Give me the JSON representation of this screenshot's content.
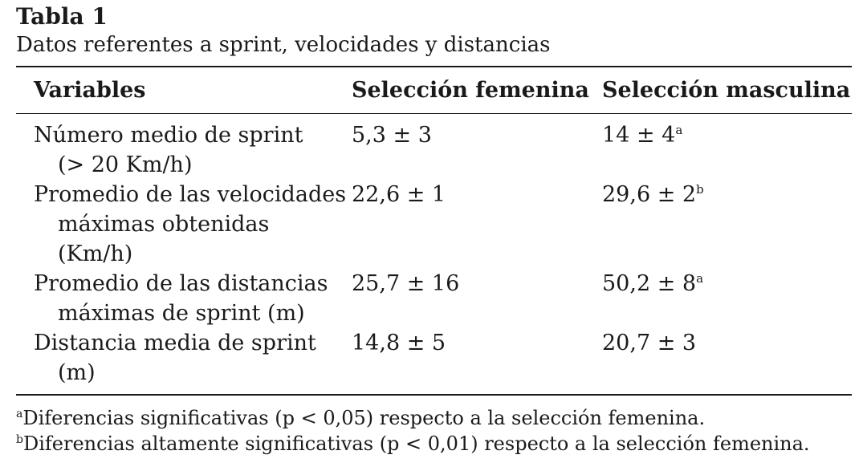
{
  "table": {
    "label": "Tabla 1",
    "caption": "Datos referentes a sprint, velocidades y distancias",
    "headers": {
      "variables": "Variables",
      "female": "Selección femenina",
      "male": "Selección masculina"
    },
    "rows": [
      {
        "variable_line1": "Número medio de sprint",
        "variable_line2": "(> 20 Km/h)",
        "variable_line3": "",
        "female": "5,3 ± 3",
        "male": "14 ± 4",
        "male_mark": "a"
      },
      {
        "variable_line1": "Promedio de las velocidades",
        "variable_line2": "máximas obtenidas",
        "variable_line3": "(Km/h)",
        "female": "22,6 ± 1",
        "male": "29,6 ± 2",
        "male_mark": "b"
      },
      {
        "variable_line1": "Promedio de las distancias",
        "variable_line2": "máximas de sprint (m)",
        "variable_line3": "",
        "female": "25,7 ± 16",
        "male": "50,2 ± 8",
        "male_mark": "a"
      },
      {
        "variable_line1": "Distancia media de sprint",
        "variable_line2": "(m)",
        "variable_line3": "",
        "female": "14,8 ± 5",
        "male": "20,7 ± 3",
        "male_mark": ""
      }
    ],
    "footnotes": [
      {
        "mark": "a",
        "text": "Diferencias significativas (p < 0,05) respecto a la selección femenina."
      },
      {
        "mark": "b",
        "text": "Diferencias altamente significativas (p < 0,01) respecto a la selección femenina."
      }
    ]
  }
}
